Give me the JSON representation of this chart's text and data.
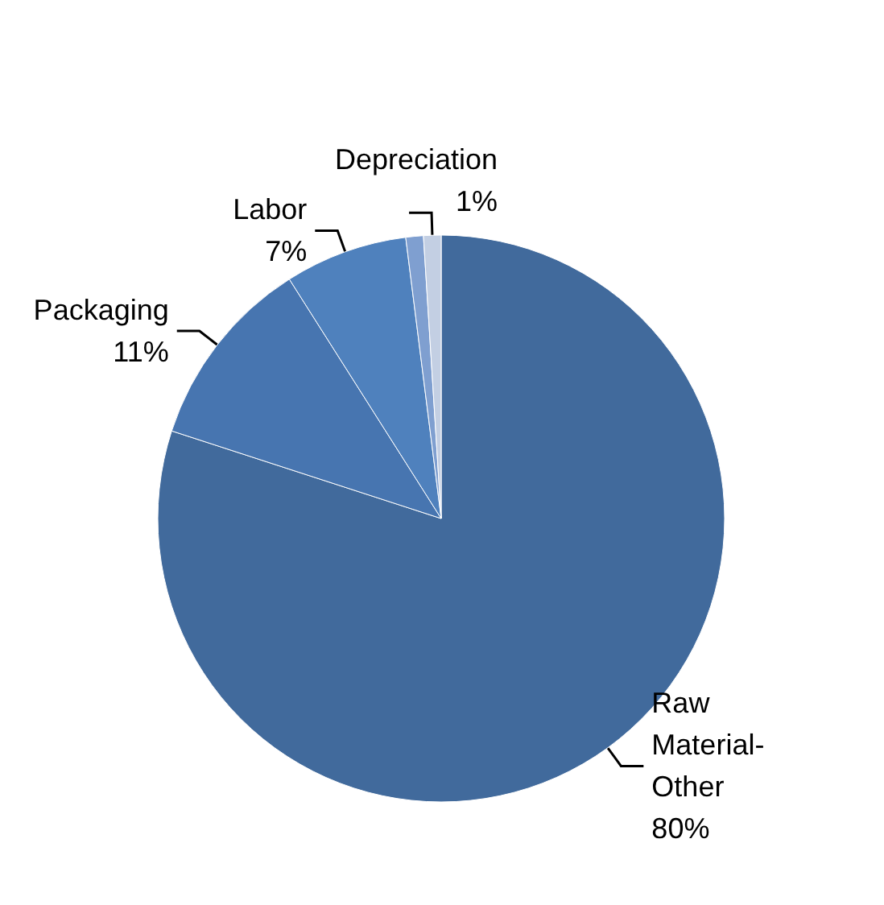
{
  "chart_data": {
    "type": "pie",
    "categories": [
      "Raw Material-Other",
      "Packaging",
      "Labor",
      null,
      "Depreciation"
    ],
    "values": [
      80,
      11,
      7,
      1,
      1
    ],
    "colors": [
      "#416a9c",
      "#4775b0",
      "#4f81bd",
      "#7f9fd0",
      "#c3cfe3"
    ],
    "value_labels": [
      "80%",
      "11%",
      "7%",
      null,
      "1%"
    ]
  }
}
